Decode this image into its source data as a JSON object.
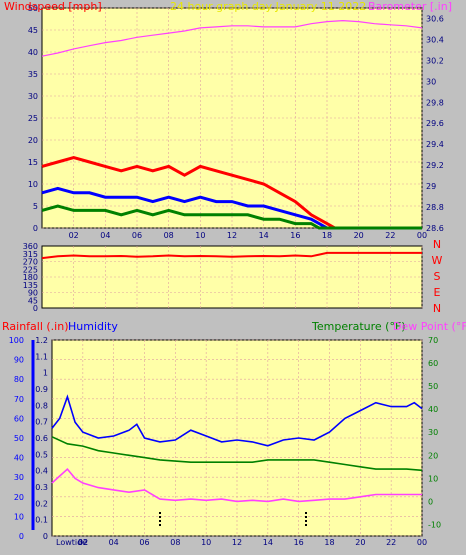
{
  "colors": {
    "background": "#c0c0c0",
    "plot_area": "#ffffa8",
    "grid": "#e0a0a0",
    "wind_avg": "#008000",
    "wind_mid": "#0000ff",
    "wind_gust": "#ff0000",
    "barometer": "#ff40ff",
    "direction": "#ff0000",
    "humidity": "#0000ff",
    "temperature": "#008000",
    "dew_point": "#ff40ff",
    "rainfall": "#0000ff",
    "tick_text": "#000080"
  },
  "chart_data": [
    {
      "type": "line",
      "title": "24 hour graph day    January 11 2022",
      "left_axis_title": "Windspeed [mph]",
      "right_axis_title": "Barometer [.in]",
      "x_ticks": [
        "02",
        "04",
        "06",
        "08",
        "10",
        "12",
        "14",
        "16",
        "18",
        "20",
        "22",
        "00"
      ],
      "y_left": {
        "min": 0,
        "max": 50,
        "ticks": [
          0,
          5,
          10,
          15,
          20,
          25,
          30,
          35,
          40,
          45,
          50
        ]
      },
      "y_right": {
        "min": 28.6,
        "max": 30.7,
        "ticks": [
          28.6,
          28.8,
          29,
          29.2,
          29.4,
          29.6,
          29.8,
          30,
          30.2,
          30.4,
          30.6
        ]
      },
      "grid": true,
      "series": [
        {
          "key": "barometer",
          "axis": "right",
          "x": [
            0,
            1,
            2,
            3,
            4,
            5,
            6,
            7,
            8,
            9,
            10,
            11,
            12,
            13,
            14,
            15,
            16,
            17,
            18,
            19,
            20,
            21,
            22,
            23,
            24
          ],
          "y": [
            30.24,
            30.27,
            30.31,
            30.34,
            30.37,
            30.39,
            30.42,
            30.44,
            30.46,
            30.48,
            30.51,
            30.52,
            30.53,
            30.53,
            30.52,
            30.52,
            30.52,
            30.55,
            30.57,
            30.58,
            30.57,
            30.55,
            30.54,
            30.53,
            30.51
          ]
        },
        {
          "key": "wind_gust",
          "axis": "left",
          "x": [
            0,
            1,
            2,
            3,
            4,
            5,
            6,
            7,
            8,
            9,
            10,
            11,
            12,
            13,
            14,
            15,
            16,
            17,
            17.5,
            18,
            18.5,
            19,
            20,
            21,
            22,
            23,
            24
          ],
          "y": [
            14,
            15,
            16,
            15,
            14,
            13,
            14,
            13,
            14,
            12,
            14,
            13,
            12,
            11,
            10,
            8,
            6,
            3,
            2,
            1,
            0,
            0,
            0,
            0,
            0,
            0,
            0
          ]
        },
        {
          "key": "wind_mid",
          "axis": "left",
          "x": [
            0,
            1,
            2,
            3,
            4,
            5,
            6,
            7,
            8,
            9,
            10,
            11,
            12,
            13,
            14,
            15,
            16,
            17,
            17.5,
            18,
            18.5,
            19,
            20,
            21,
            22,
            23,
            24
          ],
          "y": [
            8,
            9,
            8,
            8,
            7,
            7,
            7,
            6,
            7,
            6,
            7,
            6,
            6,
            5,
            5,
            4,
            3,
            2,
            1,
            0,
            0,
            0,
            0,
            0,
            0,
            0,
            0
          ]
        },
        {
          "key": "wind_avg",
          "axis": "left",
          "x": [
            0,
            1,
            2,
            3,
            4,
            5,
            6,
            7,
            8,
            9,
            10,
            11,
            12,
            13,
            14,
            15,
            16,
            17,
            17.5,
            18,
            18.5,
            19,
            20,
            21,
            22,
            23,
            24
          ],
          "y": [
            4,
            5,
            4,
            4,
            4,
            3,
            4,
            3,
            4,
            3,
            3,
            3,
            3,
            3,
            2,
            2,
            1,
            1,
            0,
            0,
            0,
            0,
            0,
            0,
            0,
            0,
            0
          ]
        }
      ]
    },
    {
      "type": "line",
      "title": "Wind direction",
      "x_ticks": [
        "02",
        "04",
        "06",
        "08",
        "10",
        "12",
        "14",
        "16",
        "18",
        "20",
        "22",
        "00"
      ],
      "y_left": {
        "min": 0,
        "max": 360,
        "ticks": [
          0,
          45,
          90,
          135,
          180,
          225,
          270,
          315,
          360
        ]
      },
      "right_labels": [
        "N",
        "W",
        "S",
        "E",
        "N"
      ],
      "grid": true,
      "series": [
        {
          "key": "direction",
          "axis": "left",
          "x": [
            0,
            1,
            2,
            3,
            4,
            5,
            6,
            7,
            8,
            9,
            10,
            11,
            12,
            13,
            14,
            15,
            16,
            17,
            17.5,
            18,
            19,
            20,
            21,
            22,
            23,
            24
          ],
          "y": [
            290,
            300,
            305,
            300,
            300,
            302,
            298,
            300,
            305,
            300,
            302,
            300,
            298,
            300,
            302,
            300,
            305,
            300,
            310,
            320,
            320,
            320,
            320,
            320,
            320,
            320
          ]
        }
      ]
    },
    {
      "type": "line",
      "title": "",
      "left_axis_title_1": "Rainfall (.in)",
      "left_axis_title_2": "Humidity",
      "right_axis_title_1": "Temperature (°F)",
      "right_axis_title_2": "Dew Point (°F)",
      "x_ticks": [
        "02",
        "04",
        "06",
        "08",
        "10",
        "12",
        "14",
        "16",
        "18",
        "20",
        "22",
        "00"
      ],
      "y_humidity": {
        "min": 0,
        "max": 100,
        "ticks": [
          0,
          10,
          20,
          30,
          40,
          50,
          60,
          70,
          80,
          90,
          100
        ]
      },
      "y_rain": {
        "min": 0,
        "max": 1.2,
        "ticks": [
          0,
          0.1,
          0.2,
          0.3,
          0.4,
          0.5,
          0.6,
          0.7,
          0.8,
          0.9,
          1,
          1.1,
          1.2
        ]
      },
      "y_temp": {
        "min": -15,
        "max": 70,
        "ticks": [
          -10,
          0,
          10,
          20,
          30,
          40,
          50,
          60,
          70
        ]
      },
      "x_markers": [
        "Lowtide",
        "02"
      ],
      "grid": true,
      "series": [
        {
          "key": "humidity",
          "axis": "humidity",
          "x": [
            0,
            0.5,
            1,
            1.5,
            2,
            3,
            4,
            5,
            5.5,
            6,
            7,
            8,
            9,
            10,
            11,
            12,
            13,
            14,
            15,
            16,
            17,
            18,
            19,
            20,
            21,
            22,
            23,
            23.5,
            24
          ],
          "y": [
            55,
            60,
            71,
            58,
            53,
            50,
            51,
            54,
            57,
            50,
            48,
            49,
            54,
            51,
            48,
            49,
            48,
            46,
            49,
            50,
            49,
            53,
            60,
            64,
            68,
            66,
            66,
            68,
            65
          ]
        },
        {
          "key": "temperature",
          "axis": "temp",
          "x": [
            0,
            1,
            2,
            3,
            4,
            5,
            6,
            7,
            8,
            9,
            10,
            11,
            12,
            13,
            14,
            15,
            16,
            17,
            18,
            19,
            20,
            21,
            22,
            23,
            24
          ],
          "y": [
            28,
            25,
            24,
            22,
            21,
            20,
            19,
            18,
            17.5,
            17,
            17,
            17,
            17,
            17,
            18,
            18,
            18,
            18,
            17,
            16,
            15,
            14,
            14,
            14,
            13.5
          ]
        },
        {
          "key": "dew_point",
          "axis": "temp",
          "x": [
            0,
            0.5,
            1,
            1.5,
            2,
            3,
            4,
            5,
            6,
            7,
            8,
            9,
            10,
            11,
            12,
            13,
            14,
            15,
            16,
            17,
            18,
            19,
            20,
            21,
            22,
            23,
            24
          ],
          "y": [
            8,
            11,
            14,
            10,
            8,
            6,
            5,
            4,
            5,
            1,
            0.5,
            1,
            0.5,
            1,
            0,
            0.5,
            0,
            1,
            0,
            0.5,
            1,
            1,
            2,
            3,
            3,
            3,
            3
          ]
        }
      ]
    }
  ]
}
